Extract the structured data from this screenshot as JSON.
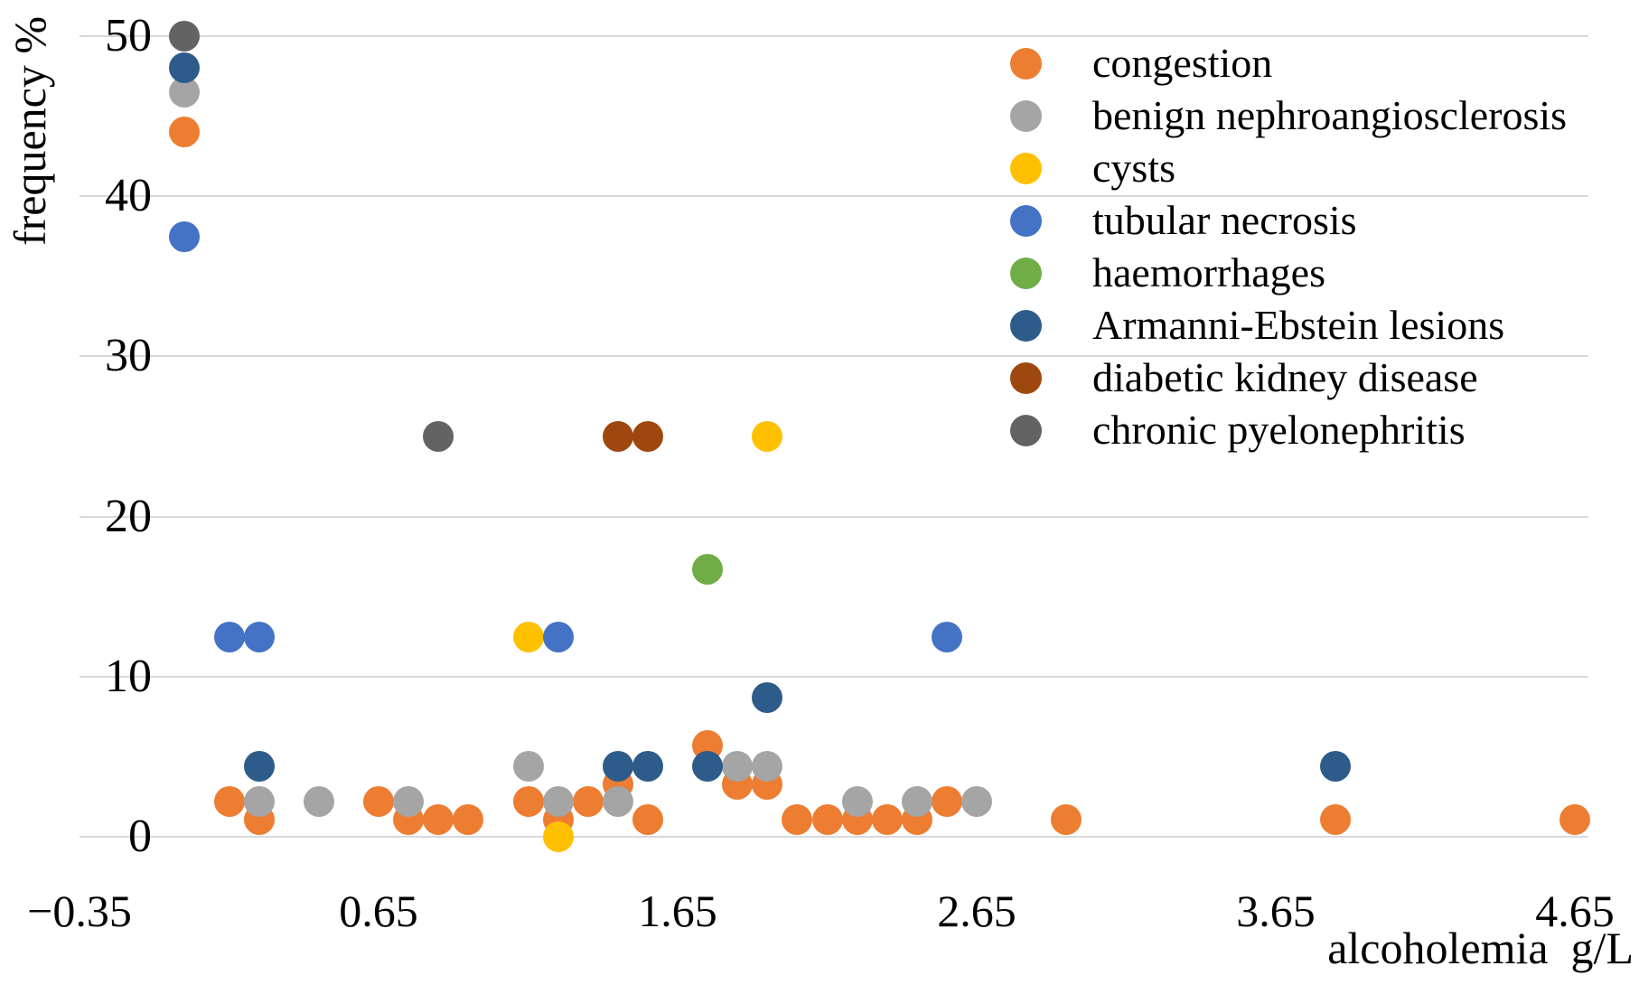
{
  "chart_data": {
    "type": "scatter",
    "title": "",
    "xlabel": "alcoholemia  g/L",
    "ylabel": "frequency %",
    "x_tick_values": [
      -0.35,
      0.65,
      1.65,
      2.65,
      3.65,
      4.65
    ],
    "x_tick_labels": [
      "−0.35",
      "0.65",
      "1.65",
      "2.65",
      "3.65",
      "4.65"
    ],
    "y_tick_values": [
      0,
      10,
      20,
      30,
      40,
      50
    ],
    "y_tick_labels": [
      "0",
      "10",
      "20",
      "30",
      "40",
      "50"
    ],
    "xlim": [
      -0.35,
      4.9
    ],
    "ylim": [
      0,
      52
    ],
    "grid": "horizontal-only",
    "legend_position": "upper-right-inside",
    "marker": "circle",
    "series": [
      {
        "name": "congestion",
        "color": "#ED7D31",
        "points": [
          [
            0,
            44
          ],
          [
            0.15,
            2.2
          ],
          [
            0.25,
            1.1
          ],
          [
            0.65,
            2.2
          ],
          [
            0.75,
            1.1
          ],
          [
            0.85,
            1.1
          ],
          [
            0.95,
            1.1
          ],
          [
            1.15,
            2.2
          ],
          [
            1.25,
            1.1
          ],
          [
            1.35,
            2.2
          ],
          [
            1.45,
            3.3
          ],
          [
            1.55,
            1.1
          ],
          [
            1.75,
            5.7
          ],
          [
            1.85,
            3.3
          ],
          [
            1.95,
            3.3
          ],
          [
            2.05,
            1.1
          ],
          [
            2.15,
            1.1
          ],
          [
            2.25,
            1.1
          ],
          [
            2.35,
            1.1
          ],
          [
            2.45,
            1.1
          ],
          [
            2.55,
            2.2
          ],
          [
            2.95,
            1.1
          ],
          [
            3.85,
            1.1
          ],
          [
            4.65,
            1.1
          ]
        ]
      },
      {
        "name": "benign nephroangiosclerosis",
        "color": "#A5A5A5",
        "points": [
          [
            0,
            46.5
          ],
          [
            0.25,
            2.2
          ],
          [
            0.45,
            2.2
          ],
          [
            0.75,
            2.2
          ],
          [
            1.15,
            4.4
          ],
          [
            1.25,
            2.2
          ],
          [
            1.45,
            2.2
          ],
          [
            1.85,
            4.4
          ],
          [
            1.95,
            4.4
          ],
          [
            2.25,
            2.2
          ],
          [
            2.45,
            2.2
          ],
          [
            2.65,
            2.2
          ]
        ]
      },
      {
        "name": "cysts",
        "color": "#FFC000",
        "points": [
          [
            1.15,
            12.5
          ],
          [
            1.25,
            0
          ],
          [
            1.95,
            25
          ]
        ]
      },
      {
        "name": "tubular necrosis",
        "color": "#4472C4",
        "points": [
          [
            0,
            37.5
          ],
          [
            0.15,
            12.5
          ],
          [
            0.25,
            12.5
          ],
          [
            1.25,
            12.5
          ],
          [
            2.55,
            12.5
          ]
        ]
      },
      {
        "name": "haemorrhages",
        "color": "#70AD47",
        "points": [
          [
            1.75,
            16.7
          ]
        ]
      },
      {
        "name": "Armanni-Ebstein lesions",
        "color": "#2E5C8A",
        "points": [
          [
            0,
            48
          ],
          [
            0.25,
            4.4
          ],
          [
            1.45,
            4.4
          ],
          [
            1.55,
            4.4
          ],
          [
            1.75,
            4.4
          ],
          [
            1.95,
            8.7
          ],
          [
            3.85,
            4.4
          ]
        ]
      },
      {
        "name": "diabetic kidney disease",
        "color": "#9E480E",
        "points": [
          [
            1.45,
            25
          ],
          [
            1.55,
            25
          ]
        ]
      },
      {
        "name": "chronic pyelonephritis",
        "color": "#636363",
        "points": [
          [
            0,
            50
          ],
          [
            0.85,
            25
          ]
        ]
      }
    ]
  },
  "style": {
    "gridline_color": "#D9D9D9",
    "text_color": "#000000",
    "background": "#FFFFFF"
  }
}
